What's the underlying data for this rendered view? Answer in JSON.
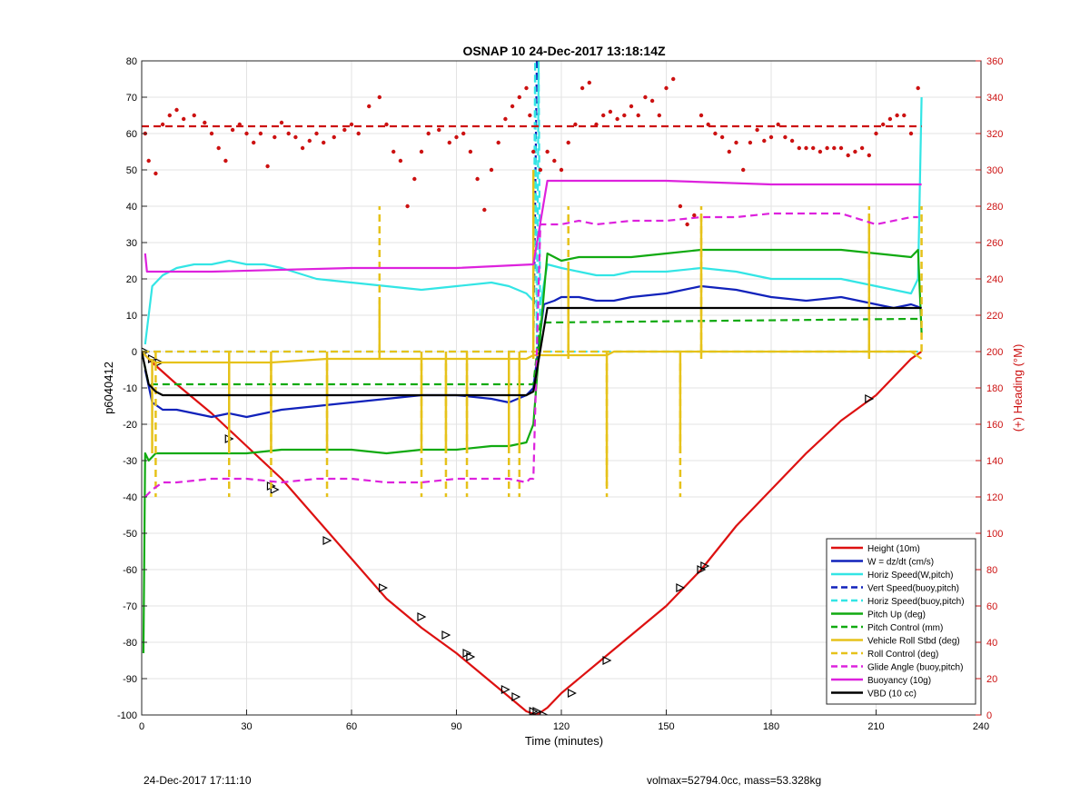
{
  "chart_data": {
    "type": "line",
    "title": "OSNAP 10 24-Dec-2017 13:18:14Z",
    "xlabel": "Time (minutes)",
    "ylabel": "p6040412",
    "y2label": "(+) Heading (°M)",
    "xlim": [
      0,
      240
    ],
    "ylim": [
      -100,
      80
    ],
    "y2lim": [
      0,
      360
    ],
    "xticks": [
      0,
      30,
      60,
      90,
      120,
      150,
      180,
      210,
      240
    ],
    "yticks": [
      -100,
      -90,
      -80,
      -70,
      -60,
      -50,
      -40,
      -30,
      -20,
      -10,
      0,
      10,
      20,
      30,
      40,
      50,
      60,
      70,
      80
    ],
    "y2ticks": [
      0,
      20,
      40,
      60,
      80,
      100,
      120,
      140,
      160,
      180,
      200,
      220,
      240,
      260,
      280,
      300,
      320,
      340,
      360
    ],
    "grid": true,
    "legend_position": "bottom-right",
    "colors": {
      "red": "#dd1111",
      "blue": "#1122bb",
      "cyan": "#33e5e5",
      "green": "#11aa11",
      "yellow": "#e6c21a",
      "magenta": "#dd22dd",
      "black": "#000000",
      "heading": "#cc1111"
    },
    "legend": [
      {
        "label": "Height (10m)",
        "color": "red",
        "dash": false
      },
      {
        "label": "W = dz/dt (cm/s)",
        "color": "blue",
        "dash": false
      },
      {
        "label": "Horiz Speed(W,pitch)",
        "color": "cyan",
        "dash": false
      },
      {
        "label": "Vert Speed(buoy,pitch)",
        "color": "blue",
        "dash": true
      },
      {
        "label": "Horiz Speed(buoy,pitch)",
        "color": "cyan",
        "dash": true
      },
      {
        "label": "Pitch Up (deg)",
        "color": "green",
        "dash": false
      },
      {
        "label": "Pitch Control (mm)",
        "color": "green",
        "dash": true
      },
      {
        "label": "Vehicle Roll Stbd (deg)",
        "color": "yellow",
        "dash": false
      },
      {
        "label": "Roll Control (deg)",
        "color": "yellow",
        "dash": true
      },
      {
        "label": "Glide Angle (buoy,pitch)",
        "color": "magenta",
        "dash": true
      },
      {
        "label": "Buoyancy (10g)",
        "color": "magenta",
        "dash": false
      },
      {
        "label": "VBD (10 cc)",
        "color": "black",
        "dash": false
      }
    ],
    "series": [
      {
        "name": "Height (10m)",
        "axis": "left",
        "color": "red",
        "dash": false,
        "x": [
          0,
          3,
          10,
          20,
          30,
          40,
          50,
          60,
          70,
          80,
          90,
          100,
          105,
          110,
          113,
          116,
          120,
          130,
          140,
          150,
          160,
          170,
          180,
          190,
          200,
          210,
          220,
          223
        ],
        "y": [
          0,
          -3,
          -9,
          -17,
          -26,
          -35,
          -46,
          -57,
          -68,
          -76,
          -83,
          -91,
          -95,
          -99,
          -100,
          -98,
          -94,
          -86,
          -78,
          -70,
          -60,
          -48,
          -38,
          -28,
          -19,
          -12,
          -2,
          0
        ]
      },
      {
        "name": "Height markers",
        "axis": "left",
        "color": "black",
        "markers": true,
        "x": [
          1,
          3,
          5,
          25,
          37,
          38,
          53,
          69,
          80,
          87,
          93,
          94,
          104,
          107,
          112,
          113,
          115,
          123,
          133,
          154,
          160,
          161,
          208
        ],
        "y": [
          0,
          -2,
          -3,
          -24,
          -37,
          -38,
          -52,
          -65,
          -73,
          -78,
          -83,
          -84,
          -93,
          -95,
          -99,
          -99,
          -100,
          -94,
          -85,
          -65,
          -60,
          -59,
          -13
        ]
      },
      {
        "name": "W = dz/dt (cm/s)",
        "axis": "left",
        "color": "blue",
        "dash": false,
        "x": [
          1,
          3,
          6,
          10,
          15,
          20,
          25,
          30,
          35,
          40,
          50,
          60,
          70,
          80,
          90,
          100,
          105,
          110,
          112,
          115,
          118,
          120,
          125,
          130,
          135,
          140,
          150,
          160,
          170,
          180,
          190,
          200,
          205,
          210,
          215,
          220,
          223
        ],
        "y": [
          -5,
          -14,
          -16,
          -16,
          -17,
          -18,
          -17,
          -18,
          -17,
          -16,
          -15,
          -14,
          -13,
          -12,
          -12,
          -13,
          -14,
          -12,
          -10,
          13,
          14,
          15,
          15,
          14,
          14,
          15,
          16,
          18,
          17,
          15,
          14,
          15,
          14,
          13,
          12,
          13,
          12
        ]
      },
      {
        "name": "Horiz Speed(W,pitch)",
        "axis": "left",
        "color": "cyan",
        "dash": false,
        "x": [
          1,
          3,
          6,
          10,
          15,
          20,
          25,
          30,
          35,
          40,
          50,
          60,
          70,
          80,
          90,
          100,
          105,
          110,
          112,
          114,
          116,
          120,
          125,
          130,
          135,
          140,
          150,
          160,
          170,
          180,
          190,
          200,
          205,
          210,
          215,
          220,
          222,
          223
        ],
        "y": [
          2,
          18,
          21,
          23,
          24,
          24,
          25,
          24,
          24,
          23,
          20,
          19,
          18,
          17,
          18,
          19,
          18,
          16,
          14,
          13,
          24,
          23,
          22,
          21,
          21,
          22,
          22,
          23,
          22,
          20,
          20,
          20,
          19,
          18,
          17,
          16,
          20,
          70
        ]
      },
      {
        "name": "Vert Speed(buoy,pitch)",
        "axis": "left",
        "color": "blue",
        "dash": true,
        "x": [
          112,
          113
        ],
        "y": [
          0,
          80
        ]
      },
      {
        "name": "Horiz Speed(buoy,pitch)",
        "axis": "left",
        "color": "cyan",
        "dash": true,
        "x": [
          0,
          110,
          112,
          112.5,
          113,
          113.5,
          114,
          223
        ],
        "y": [
          0,
          0,
          0,
          80,
          0,
          80,
          0,
          0
        ]
      },
      {
        "name": "Pitch Up (deg)",
        "axis": "left",
        "color": "green",
        "dash": false,
        "x": [
          0.5,
          1,
          2,
          4,
          10,
          20,
          30,
          40,
          50,
          60,
          70,
          80,
          90,
          100,
          105,
          110,
          112,
          114,
          116,
          120,
          125,
          130,
          140,
          150,
          160,
          170,
          180,
          190,
          200,
          210,
          220,
          222,
          223
        ],
        "y": [
          -83,
          -28,
          -30,
          -28,
          -28,
          -28,
          -28,
          -27,
          -27,
          -27,
          -28,
          -27,
          -27,
          -26,
          -26,
          -25,
          -20,
          5,
          27,
          25,
          26,
          26,
          26,
          27,
          28,
          28,
          28,
          28,
          28,
          27,
          26,
          28,
          5
        ]
      },
      {
        "name": "Pitch Control (mm)",
        "axis": "left",
        "color": "green",
        "dash": true,
        "x": [
          0,
          2,
          4,
          110,
          112,
          114,
          116,
          220,
          223
        ],
        "y": [
          0,
          -9,
          -9,
          -9,
          -9,
          8,
          8,
          9,
          9
        ]
      },
      {
        "name": "Vehicle Roll Stbd (deg)",
        "axis": "left",
        "color": "yellow",
        "dash": false,
        "x": [
          0,
          2,
          4,
          25,
          37,
          53,
          68,
          80,
          87,
          93,
          105,
          108,
          110,
          112,
          114,
          120,
          122,
          133,
          135,
          154,
          160,
          180,
          200,
          207,
          208,
          209,
          220,
          223
        ],
        "y": [
          0,
          -2,
          -3,
          -3,
          -3,
          -2,
          -2,
          -2,
          -2,
          -2,
          -2,
          -2,
          -2,
          -1,
          -1,
          -1,
          -1,
          -1,
          0,
          0,
          0,
          0,
          0,
          0,
          0,
          0,
          0,
          -2
        ],
        "spikes": [
          [
            3,
            -28
          ],
          [
            25,
            -28
          ],
          [
            37,
            -28
          ],
          [
            53,
            -28
          ],
          [
            68,
            14
          ],
          [
            80,
            -28
          ],
          [
            87,
            -28
          ],
          [
            93,
            -28
          ],
          [
            105,
            -28
          ],
          [
            108,
            -28
          ],
          [
            112,
            50
          ],
          [
            122,
            23
          ],
          [
            133,
            -37
          ],
          [
            154,
            -28
          ],
          [
            160,
            38
          ],
          [
            208,
            38
          ]
        ]
      },
      {
        "name": "Roll Control (deg)",
        "axis": "left",
        "color": "yellow",
        "dash": true,
        "x": [
          0,
          112,
          115,
          223
        ],
        "y": [
          0,
          0,
          0,
          0
        ],
        "spikes": [
          [
            4,
            -40
          ],
          [
            25,
            -40
          ],
          [
            37,
            -40
          ],
          [
            53,
            -40
          ],
          [
            68,
            40
          ],
          [
            80,
            -40
          ],
          [
            87,
            -40
          ],
          [
            93,
            -40
          ],
          [
            105,
            -40
          ],
          [
            108,
            -40
          ],
          [
            112,
            40
          ],
          [
            122,
            40
          ],
          [
            133,
            -40
          ],
          [
            154,
            -40
          ],
          [
            160,
            40
          ],
          [
            208,
            40
          ],
          [
            223,
            40
          ]
        ]
      },
      {
        "name": "Glide Angle (buoy,pitch)",
        "axis": "left",
        "color": "magenta",
        "dash": true,
        "x": [
          1,
          3,
          6,
          10,
          20,
          30,
          40,
          50,
          60,
          70,
          80,
          90,
          100,
          105,
          110,
          111,
          112,
          113,
          114,
          116,
          120,
          125,
          130,
          140,
          150,
          160,
          170,
          180,
          190,
          200,
          210,
          220,
          222
        ],
        "y": [
          -40,
          -38,
          -36,
          -36,
          -35,
          -35,
          -36,
          -35,
          -35,
          -36,
          -36,
          -35,
          -35,
          -35,
          -36,
          -35,
          -35,
          0,
          35,
          35,
          35,
          36,
          35,
          36,
          36,
          37,
          37,
          38,
          38,
          38,
          35,
          37,
          37
        ]
      },
      {
        "name": "Buoyancy (10g)",
        "axis": "left",
        "color": "magenta",
        "dash": false,
        "x": [
          1,
          1.5,
          3,
          20,
          60,
          90,
          112,
          116,
          117,
          150,
          180,
          223
        ],
        "y": [
          27,
          22,
          22,
          22,
          23,
          23,
          24,
          47,
          47,
          47,
          46,
          46
        ]
      },
      {
        "name": "VBD (10 cc)",
        "axis": "left",
        "color": "black",
        "dash": false,
        "x": [
          0,
          2,
          4,
          6,
          30,
          60,
          90,
          110,
          112,
          116,
          150,
          223
        ],
        "y": [
          0,
          -9,
          -11,
          -12,
          -12,
          -12,
          -12,
          -12,
          -11,
          12,
          12,
          12
        ]
      },
      {
        "name": "Heading",
        "axis": "right",
        "color": "heading",
        "markers": true,
        "scatter": true,
        "x": [
          1,
          2,
          4,
          6,
          8,
          10,
          12,
          15,
          18,
          20,
          22,
          24,
          26,
          28,
          30,
          32,
          34,
          36,
          38,
          40,
          42,
          44,
          46,
          48,
          50,
          52,
          55,
          58,
          60,
          62,
          65,
          68,
          70,
          72,
          74,
          76,
          78,
          80,
          82,
          85,
          88,
          90,
          92,
          94,
          96,
          98,
          100,
          102,
          104,
          106,
          108,
          110,
          111,
          112,
          114,
          116,
          118,
          120,
          122,
          124,
          126,
          128,
          130,
          132,
          134,
          136,
          138,
          140,
          142,
          144,
          146,
          148,
          150,
          152,
          154,
          156,
          158,
          160,
          162,
          164,
          166,
          168,
          170,
          172,
          174,
          176,
          178,
          180,
          182,
          184,
          186,
          188,
          190,
          192,
          194,
          196,
          198,
          200,
          202,
          204,
          206,
          208,
          210,
          212,
          214,
          216,
          218,
          220,
          222
        ],
        "y": [
          320,
          305,
          298,
          325,
          330,
          333,
          328,
          330,
          326,
          320,
          312,
          305,
          322,
          325,
          320,
          315,
          320,
          302,
          318,
          326,
          320,
          318,
          312,
          316,
          320,
          315,
          318,
          322,
          325,
          320,
          335,
          340,
          325,
          310,
          305,
          280,
          295,
          310,
          320,
          322,
          315,
          318,
          320,
          310,
          295,
          278,
          300,
          315,
          328,
          335,
          340,
          345,
          330,
          310,
          300,
          310,
          305,
          300,
          315,
          325,
          345,
          348,
          325,
          330,
          332,
          328,
          330,
          335,
          330,
          340,
          338,
          330,
          345,
          350,
          280,
          270,
          275,
          330,
          325,
          320,
          318,
          310,
          315,
          300,
          315,
          322,
          316,
          318,
          325,
          318,
          316,
          312,
          312,
          312,
          310,
          312,
          312,
          312,
          308,
          310,
          312,
          308,
          320,
          325,
          328,
          330,
          330,
          320,
          345
        ]
      },
      {
        "name": "Heading reference",
        "axis": "right",
        "color": "heading",
        "dash": true,
        "x": [
          0,
          223
        ],
        "y": [
          324,
          324
        ]
      }
    ]
  },
  "footer": {
    "left": "24-Dec-2017 17:11:10",
    "right": "volmax=52794.0cc, mass=53.328kg"
  }
}
